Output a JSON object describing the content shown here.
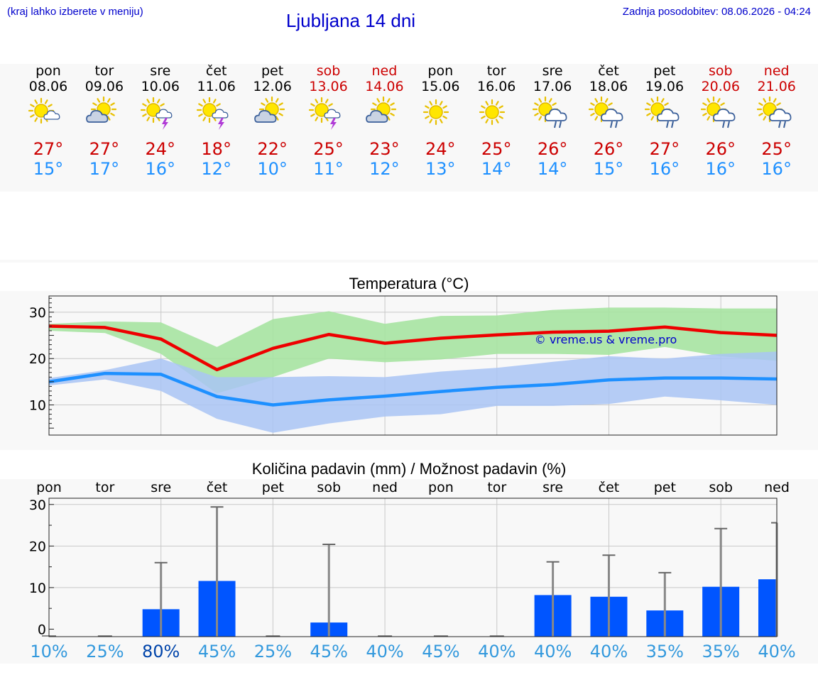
{
  "header": {
    "hint": "(kraj lahko izberete v meniju)",
    "title": "Ljubljana 14 dni",
    "updated": "Zadnja posodobitev: 08.06.2026 - 04:24"
  },
  "colors": {
    "link_blue": "#0000cc",
    "max_temp_red": "#cc0000",
    "min_temp_blue": "#1e90ff",
    "band_green": "#a6e3a1",
    "band_blue": "#a9c4f5",
    "line_red": "#ee0000",
    "line_blue": "#1e90ff",
    "bar_blue": "#0055ff",
    "whisker_gray": "#888888",
    "prob_blue": "#3399dd",
    "prob_dark": "#0044aa"
  },
  "days": [
    {
      "name": "pon",
      "date": "08.06",
      "weekend": false,
      "icon": "sun-cloud-icon",
      "max": "27°",
      "min": "15°"
    },
    {
      "name": "tor",
      "date": "09.06",
      "weekend": false,
      "icon": "cloud-sun-icon",
      "max": "27°",
      "min": "17°"
    },
    {
      "name": "sre",
      "date": "10.06",
      "weekend": false,
      "icon": "sun-thunder-icon",
      "max": "24°",
      "min": "16°"
    },
    {
      "name": "čet",
      "date": "11.06",
      "weekend": false,
      "icon": "sun-thunder-icon",
      "max": "18°",
      "min": "12°"
    },
    {
      "name": "pet",
      "date": "12.06",
      "weekend": false,
      "icon": "cloud-sun-icon",
      "max": "22°",
      "min": "10°"
    },
    {
      "name": "sob",
      "date": "13.06",
      "weekend": true,
      "icon": "sun-thunder-icon",
      "max": "25°",
      "min": "11°"
    },
    {
      "name": "ned",
      "date": "14.06",
      "weekend": true,
      "icon": "cloud-sun-icon",
      "max": "23°",
      "min": "12°"
    },
    {
      "name": "pon",
      "date": "15.06",
      "weekend": false,
      "icon": "sun-icon",
      "max": "24°",
      "min": "13°"
    },
    {
      "name": "tor",
      "date": "16.06",
      "weekend": false,
      "icon": "sun-icon",
      "max": "25°",
      "min": "14°"
    },
    {
      "name": "sre",
      "date": "17.06",
      "weekend": false,
      "icon": "sun-rain-icon",
      "max": "26°",
      "min": "14°"
    },
    {
      "name": "čet",
      "date": "18.06",
      "weekend": false,
      "icon": "sun-rain-icon",
      "max": "26°",
      "min": "15°"
    },
    {
      "name": "pet",
      "date": "19.06",
      "weekend": false,
      "icon": "sun-rain-icon",
      "max": "27°",
      "min": "16°"
    },
    {
      "name": "sob",
      "date": "20.06",
      "weekend": true,
      "icon": "sun-rain-icon",
      "max": "26°",
      "min": "16°"
    },
    {
      "name": "ned",
      "date": "21.06",
      "weekend": true,
      "icon": "sun-rain-icon",
      "max": "25°",
      "min": "16°"
    }
  ],
  "chart_data": [
    {
      "type": "line",
      "title": "Temperatura (°C)",
      "watermark": "© vreme.us & vreme.pro",
      "x": [
        0,
        1,
        2,
        3,
        4,
        5,
        6,
        7,
        8,
        9,
        10,
        11,
        12,
        13
      ],
      "ylim": [
        3.5,
        33.5
      ],
      "yticks": [
        10,
        20,
        30
      ],
      "grid": true,
      "series": [
        {
          "values": [
            27.0,
            26.7,
            24.2,
            17.6,
            22.2,
            25.2,
            23.3,
            24.4,
            25.1,
            25.7,
            25.9,
            26.8,
            25.6,
            25.0
          ]
        },
        {
          "values": [
            15.0,
            16.8,
            16.6,
            11.8,
            10.0,
            11.1,
            11.9,
            12.9,
            13.8,
            14.4,
            15.4,
            15.8,
            15.8,
            15.6
          ]
        }
      ],
      "bands": [
        {
          "upper": [
            27.5,
            28.0,
            27.8,
            22.5,
            28.5,
            30.2,
            27.5,
            29.2,
            29.3,
            30.5,
            31.0,
            31.0,
            30.8,
            30.8
          ],
          "lower": [
            26.0,
            25.5,
            21.0,
            12.5,
            16.0,
            20.0,
            19.2,
            19.8,
            21.0,
            21.0,
            20.8,
            22.5,
            20.5,
            19.5
          ]
        },
        {
          "upper": [
            15.8,
            17.5,
            20.0,
            16.0,
            16.0,
            16.2,
            16.0,
            17.2,
            18.0,
            19.3,
            20.5,
            20.0,
            21.0,
            21.5
          ],
          "lower": [
            14.2,
            15.5,
            13.0,
            7.0,
            4.0,
            6.0,
            7.5,
            8.0,
            9.8,
            9.8,
            10.2,
            11.8,
            11.0,
            10.0
          ]
        }
      ]
    },
    {
      "type": "bar",
      "title": "Količina padavin (mm) / Možnost padavin (%)",
      "categories": [
        "pon",
        "tor",
        "sre",
        "čet",
        "pet",
        "sob",
        "ned",
        "pon",
        "tor",
        "sre",
        "čet",
        "pet",
        "sob",
        "ned"
      ],
      "x": [
        0,
        1,
        2,
        3,
        4,
        5,
        6,
        7,
        8,
        9,
        10,
        11,
        12,
        13
      ],
      "ylim": [
        -1.8,
        31.5
      ],
      "yticks": [
        0,
        10,
        20,
        30
      ],
      "grid": true,
      "amount_mm": [
        0,
        0,
        4.8,
        11.6,
        0,
        1.6,
        0,
        0,
        0,
        8.2,
        7.8,
        4.5,
        10.2,
        12.0
      ],
      "max_mm": [
        0,
        0,
        16.0,
        29.4,
        0,
        20.4,
        0,
        0,
        0,
        16.2,
        17.8,
        13.6,
        24.2,
        25.6
      ],
      "probability": [
        "10%",
        "25%",
        "80%",
        "45%",
        "25%",
        "45%",
        "40%",
        "45%",
        "40%",
        "40%",
        "40%",
        "35%",
        "35%",
        "40%"
      ],
      "probability_emphasis": [
        false,
        false,
        true,
        false,
        false,
        false,
        false,
        false,
        false,
        false,
        false,
        false,
        false,
        false
      ]
    }
  ]
}
